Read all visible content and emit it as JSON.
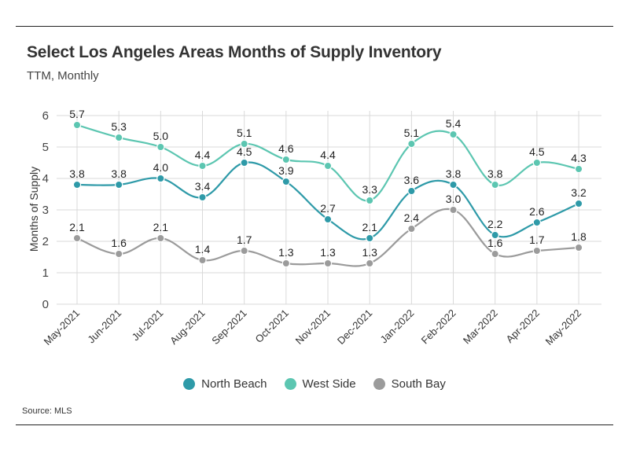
{
  "title": "Select Los Angeles Areas Months of Supply Inventory",
  "subtitle": "TTM, Monthly",
  "source": "Source:  MLS",
  "chart_data": {
    "type": "line",
    "title": "Select Los Angeles Areas Months of Supply Inventory",
    "subtitle": "TTM, Monthly",
    "xlabel": "",
    "ylabel": "Months of Supply",
    "ylim": [
      0,
      6
    ],
    "yticks": [
      "0",
      "1",
      "2",
      "3",
      "4",
      "5",
      "6"
    ],
    "grid": true,
    "legend_position": "bottom",
    "categories": [
      "May-2021",
      "Jun-2021",
      "Jul-2021",
      "Aug-2021",
      "Sep-2021",
      "Oct-2021",
      "Nov-2021",
      "Dec-2021",
      "Jan-2022",
      "Feb-2022",
      "Mar-2022",
      "Apr-2022",
      "May-2022"
    ],
    "series": [
      {
        "name": "North Beach",
        "color": "#2e9aa8",
        "values": [
          3.8,
          3.8,
          4.0,
          3.4,
          4.5,
          3.9,
          2.7,
          2.1,
          3.6,
          3.8,
          2.2,
          2.6,
          3.2
        ],
        "labels": [
          "3.8",
          "3.8",
          "4.0",
          "3.4",
          "4.5",
          "3.9",
          "2.7",
          "2.1",
          "3.6",
          "3.8",
          "2.2",
          "2.6",
          "3.2"
        ]
      },
      {
        "name": "West Side",
        "color": "#5cc6b1",
        "values": [
          5.7,
          5.3,
          5.0,
          4.4,
          5.1,
          4.6,
          4.4,
          3.3,
          5.1,
          5.4,
          3.8,
          4.5,
          4.3
        ],
        "labels": [
          "5.7",
          "5.3",
          "5.0",
          "4.4",
          "5.1",
          "4.6",
          "4.4",
          "3.3",
          "5.1",
          "5.4",
          "3.8",
          "4.5",
          "4.3"
        ]
      },
      {
        "name": "South Bay",
        "color": "#9b9b9b",
        "values": [
          2.1,
          1.6,
          2.1,
          1.4,
          1.7,
          1.3,
          1.3,
          1.3,
          2.4,
          3.0,
          1.6,
          1.7,
          1.8
        ],
        "labels": [
          "2.1",
          "1.6",
          "2.1",
          "1.4",
          "1.7",
          "1.3",
          "1.3",
          "1.3",
          "2.4",
          "3.0",
          "1.6",
          "1.7",
          "1.8"
        ]
      }
    ]
  }
}
